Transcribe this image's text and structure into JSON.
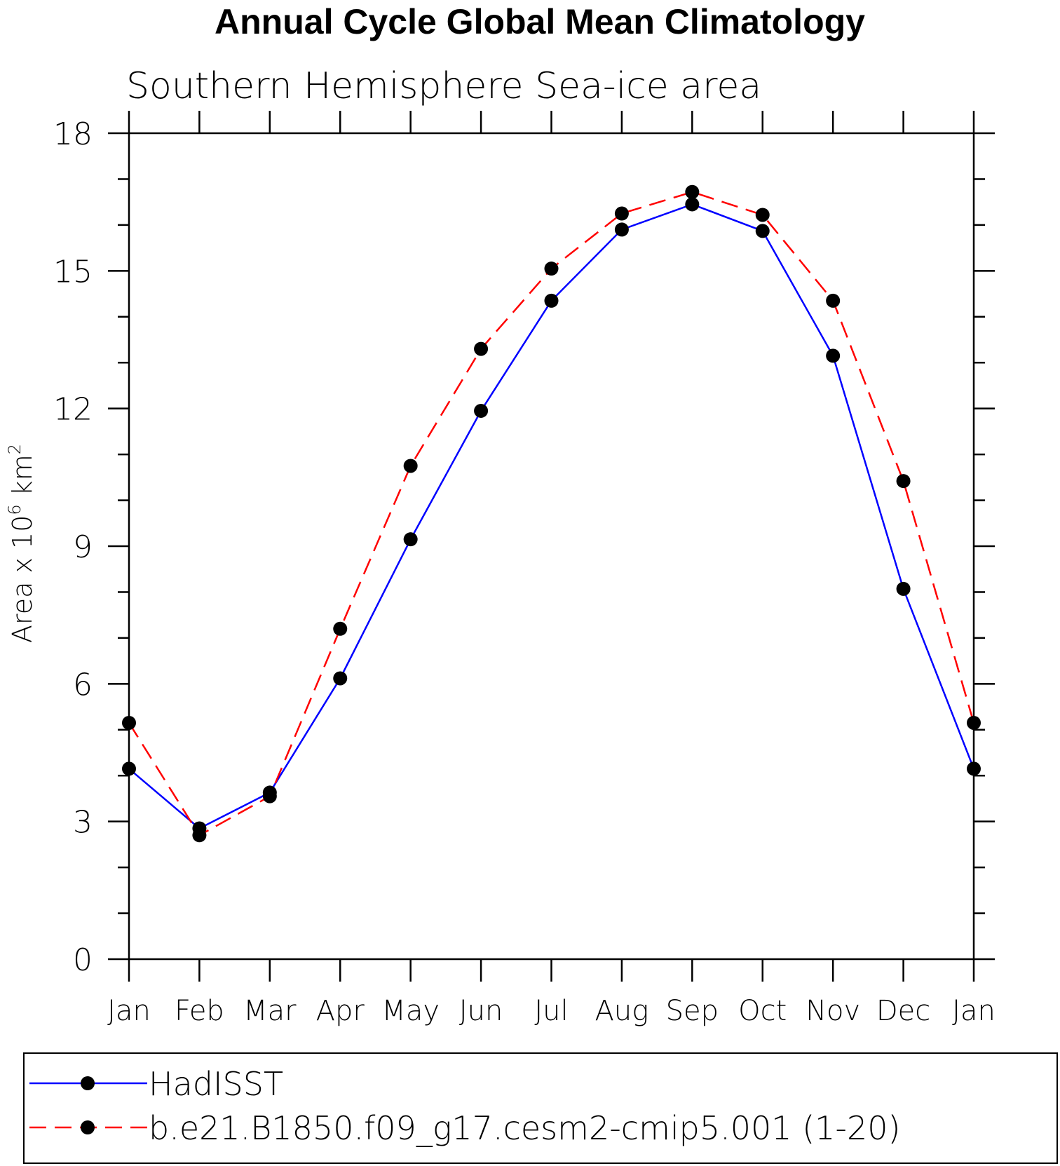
{
  "chart_data": {
    "type": "line",
    "title": "Annual Cycle Global Mean Climatology",
    "subtitle": "Southern Hemisphere Sea-ice area",
    "ylabel": "Area x 10^6 km^2",
    "ylabel_parts": {
      "main": "Area x 10",
      "exp1": "6",
      "unit": " km",
      "exp2": "2"
    },
    "xlabel": "",
    "categories": [
      "Jan",
      "Feb",
      "Mar",
      "Apr",
      "May",
      "Jun",
      "Jul",
      "Aug",
      "Sep",
      "Oct",
      "Nov",
      "Dec",
      "Jan"
    ],
    "ylim": [
      0,
      18
    ],
    "yticks": [
      0,
      3,
      6,
      9,
      12,
      15,
      18
    ],
    "y_minor_step": 1,
    "grid": false,
    "legend_position": "bottom",
    "series": [
      {
        "name": "HadISST",
        "color": "#0000ff",
        "dash": "solid",
        "marker": "filled-circle",
        "values": [
          4.15,
          2.85,
          3.63,
          6.12,
          9.15,
          11.95,
          14.35,
          15.9,
          16.45,
          15.87,
          13.15,
          8.07,
          4.15
        ]
      },
      {
        "name": "b.e21.B1850.f09_g17.cesm2-cmip5.001 (1-20)",
        "color": "#ff0000",
        "dash": "dashed",
        "marker": "filled-circle",
        "values": [
          5.15,
          2.7,
          3.55,
          7.2,
          10.75,
          13.3,
          15.05,
          16.25,
          16.72,
          16.22,
          14.35,
          10.42,
          5.15
        ]
      }
    ]
  }
}
